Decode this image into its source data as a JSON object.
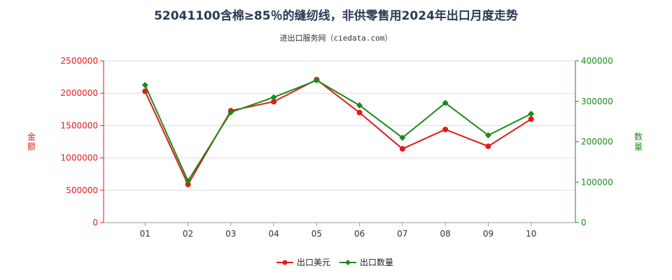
{
  "title": "52041100含棉≥85％的缝纫线，非供零售用2024年出口月度走势",
  "subtitle": "进出口服务网（ciedata.com）",
  "chart_data": {
    "type": "line",
    "x": [
      "01",
      "02",
      "03",
      "04",
      "05",
      "06",
      "07",
      "08",
      "09",
      "10"
    ],
    "y_left_label": "金额",
    "y_right_label": "数量",
    "y_left_ticks": [
      "0",
      "500000",
      "1000000",
      "1500000",
      "2000000",
      "2500000"
    ],
    "y_right_ticks": [
      "0",
      "100000",
      "200000",
      "300000",
      "400000"
    ],
    "ylim_left": [
      0,
      2500000
    ],
    "ylim_right": [
      0,
      400000
    ],
    "series": [
      {
        "name": "出口美元",
        "axis": "left",
        "color": "#e31a1c",
        "values": [
          2030000,
          590000,
          1730000,
          1870000,
          2210000,
          1700000,
          1140000,
          1440000,
          1180000,
          1600000
        ]
      },
      {
        "name": "出口数量",
        "axis": "right",
        "color": "#1a8a1a",
        "values": [
          340000,
          103000,
          273000,
          310000,
          352000,
          290000,
          210000,
          296000,
          216000,
          269000
        ]
      }
    ],
    "colors": {
      "left_axis": "#e31a1c",
      "right_axis": "#1a8a1a",
      "grid": "#dddddd"
    },
    "legend_position": "bottom-center",
    "grid": true
  }
}
